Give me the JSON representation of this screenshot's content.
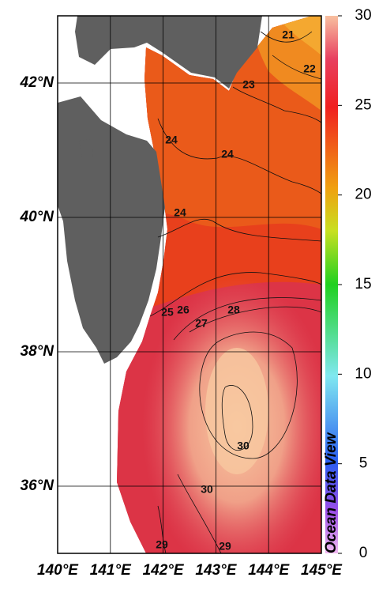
{
  "map": {
    "xlim": [
      140,
      145
    ],
    "ylim": [
      35,
      43
    ],
    "xticks": [
      {
        "value": 140,
        "label": "140°E"
      },
      {
        "value": 141,
        "label": "141°E"
      },
      {
        "value": 142,
        "label": "142°E"
      },
      {
        "value": 143,
        "label": "143°E"
      },
      {
        "value": 144,
        "label": "144°E"
      },
      {
        "value": 145,
        "label": "145°E"
      }
    ],
    "yticks": [
      {
        "value": 36,
        "label": "36°N"
      },
      {
        "value": 38,
        "label": "38°N"
      },
      {
        "value": 40,
        "label": "40°N"
      },
      {
        "value": 42,
        "label": "42°N"
      }
    ],
    "grid": true,
    "colorbar": {
      "lim": [
        0,
        30
      ],
      "ticks": [
        0,
        5,
        10,
        15,
        20,
        25,
        30
      ]
    },
    "contour_labels": [
      21,
      22,
      23,
      24,
      24,
      24,
      25,
      26,
      27,
      28,
      30,
      30,
      29,
      29
    ],
    "credit": "Ocean Data View"
  }
}
